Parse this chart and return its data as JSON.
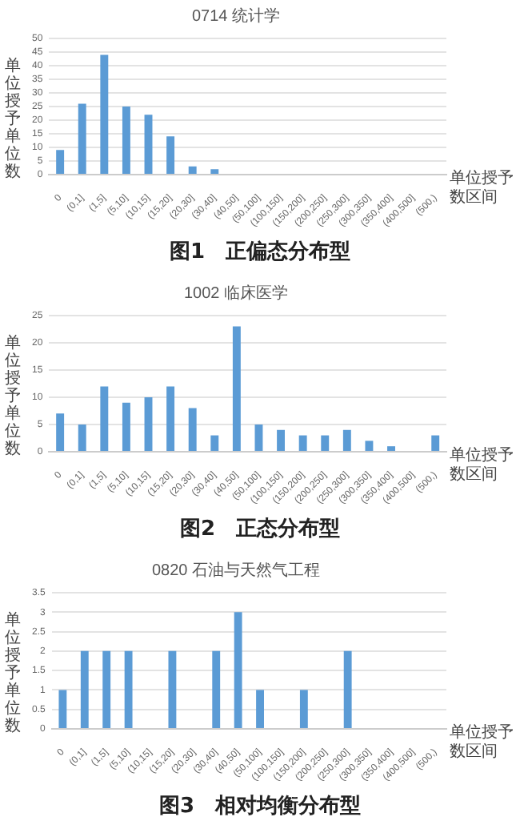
{
  "chart_data": [
    {
      "type": "bar",
      "title": "0714 统计学",
      "ylabel": "单位授予单位数",
      "xlabel": "单位授予数区间",
      "annotations": [
        "图1　正偏态分布型"
      ],
      "grid": "y",
      "color": "#5b9bd5",
      "categories": [
        "0",
        "(0,1]",
        "(1,5]",
        "(5,10]",
        "(10,15]",
        "(15,20]",
        "(20,30]",
        "(30,40]",
        "(40,50]",
        "(50,100]",
        "(100,150]",
        "(150,200]",
        "(200,250]",
        "(250,300]",
        "(300,350]",
        "(350,400]",
        "(400,500]",
        "(500,)"
      ],
      "values": [
        9,
        26,
        44,
        25,
        22,
        14,
        3,
        2,
        0,
        0,
        0,
        0,
        0,
        0,
        0,
        0,
        0,
        0
      ],
      "ylim": [
        0,
        50
      ],
      "yticks": [
        0,
        5,
        10,
        15,
        20,
        25,
        30,
        35,
        40,
        45,
        50
      ]
    },
    {
      "type": "bar",
      "title": "1002 临床医学",
      "ylabel": "单位授予单位数",
      "xlabel": "单位授予数区间",
      "annotations": [
        "图2　正态分布型"
      ],
      "grid": "y",
      "color": "#5b9bd5",
      "categories": [
        "0",
        "(0,1]",
        "(1,5]",
        "(5,10]",
        "(10,15]",
        "(15,20]",
        "(20,30]",
        "(30,40]",
        "(40,50]",
        "(50,100]",
        "(100,150]",
        "(150,200]",
        "(200,250]",
        "(250,300]",
        "(300,350]",
        "(350,400]",
        "(400,500]",
        "(500,)"
      ],
      "values": [
        7,
        5,
        12,
        9,
        10,
        12,
        8,
        3,
        23,
        5,
        4,
        3,
        3,
        4,
        2,
        1,
        0,
        3
      ],
      "ylim": [
        0,
        25
      ],
      "yticks": [
        0,
        5,
        10,
        15,
        20,
        25
      ]
    },
    {
      "type": "bar",
      "title": "0820 石油与天然气工程",
      "ylabel": "单位授予单位数",
      "xlabel": "单位授予数区间",
      "annotations": [
        "图3　相对均衡分布型"
      ],
      "grid": "y",
      "color": "#5b9bd5",
      "categories": [
        "0",
        "(0,1]",
        "(1,5]",
        "(5,10]",
        "(10,15]",
        "(15,20]",
        "(20,30]",
        "(30,40]",
        "(40,50]",
        "(50,100]",
        "(100,150]",
        "(150,200]",
        "(200,250]",
        "(250,300]",
        "(300,350]",
        "(350,400]",
        "(400,500]",
        "(500,)"
      ],
      "values": [
        1,
        2,
        2,
        2,
        0,
        2,
        0,
        2,
        3,
        1,
        0,
        1,
        0,
        2,
        0,
        0,
        0,
        0
      ],
      "ylim": [
        0,
        3.5
      ],
      "yticks": [
        0,
        0.5,
        1,
        1.5,
        2,
        2.5,
        3,
        3.5
      ]
    }
  ]
}
